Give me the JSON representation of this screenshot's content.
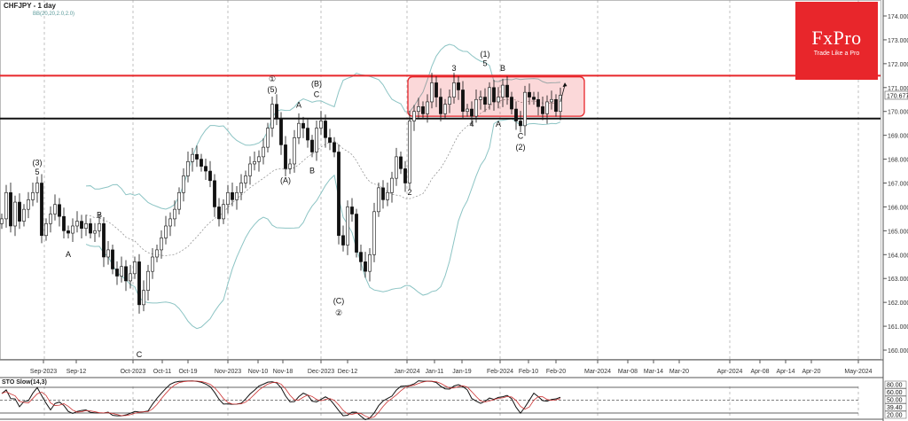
{
  "header": {
    "symbol_title": "CHFJPY - 1 day",
    "indicator_info": "BB(20,20,2.0,2.0)"
  },
  "logo": {
    "brand": "FxPro",
    "tagline": "Trade Like a Pro"
  },
  "chart_data": [
    {
      "type": "candlestick",
      "title": "CHFJPY - 1 day",
      "y_ticks": [
        "174.000",
        "173.000",
        "172.000",
        "171.000",
        "170.000",
        "169.000",
        "168.000",
        "167.000",
        "166.000",
        "165.000",
        "164.000",
        "163.000",
        "162.000",
        "161.000",
        "160.000"
      ],
      "ylim": [
        159.5,
        174.6
      ],
      "current_price": "170.677",
      "x_tick_labels": [
        "Sep-2023",
        "Sep-12",
        "Oct-2023",
        "Oct-11",
        "Oct-19",
        "Nov-2023",
        "Nov-10",
        "Nov-18",
        "Dec-2023",
        "Dec-12",
        "Jan-2024",
        "Jan-11",
        "Jan-19",
        "Feb-2024",
        "Feb-10",
        "Feb-20",
        "Mar-2024",
        "Mar-08",
        "Mar-14",
        "Mar-20",
        "Apr-2024",
        "Apr-08",
        "Apr-14",
        "Apr-20",
        "May-2024"
      ],
      "close": [
        165.5,
        166.6,
        165.2,
        166.2,
        165.4,
        165.9,
        166.3,
        166.6,
        167.0,
        164.8,
        165.3,
        165.7,
        166.1,
        165.6,
        165.0,
        164.9,
        165.2,
        165.4,
        165.1,
        165.3,
        164.9,
        165.0,
        165.3,
        163.9,
        164.2,
        163.4,
        163.1,
        163.5,
        162.9,
        163.2,
        163.7,
        161.9,
        162.5,
        163.3,
        163.9,
        164.2,
        164.7,
        165.2,
        165.5,
        165.9,
        166.6,
        167.3,
        167.9,
        168.2,
        168.0,
        167.7,
        167.5,
        167.1,
        166.0,
        165.5,
        166.1,
        166.6,
        166.3,
        166.6,
        167.0,
        167.3,
        167.8,
        167.9,
        168.1,
        168.5,
        169.3,
        170.3,
        169.7,
        168.6,
        167.6,
        167.8,
        168.9,
        169.5,
        169.3,
        168.8,
        168.3,
        169.3,
        169.6,
        168.9,
        168.7,
        168.3,
        164.8,
        164.4,
        166.0,
        165.7,
        164.1,
        163.7,
        163.3,
        164.0,
        165.8,
        166.8,
        166.3,
        166.6,
        167.2,
        168.1,
        167.6,
        167.0,
        169.6,
        170.0,
        170.2,
        169.9,
        170.4,
        171.2,
        170.6,
        169.9,
        170.3,
        170.6,
        171.2,
        170.9,
        170.0,
        170.1,
        169.8,
        170.5,
        170.6,
        170.3,
        171.0,
        170.4,
        170.6,
        171.1,
        170.6,
        170.1,
        169.6,
        169.4,
        170.8,
        170.6,
        170.5,
        170.2,
        169.9,
        170.4,
        170.5,
        170.0,
        170.677
      ],
      "indicators": [
        "Bollinger Bands (20, 2.0)"
      ],
      "horizontal_levels": [
        {
          "price": 171.5,
          "color": "#e8262b"
        },
        {
          "price": 169.7,
          "color": "#111111"
        }
      ],
      "range_box": {
        "from_index": 92,
        "to_index": 131,
        "top": 171.45,
        "bottom": 169.8,
        "color": "#e8262b"
      },
      "arrow": {
        "from_index": 126,
        "from_price": 170.4,
        "to_index": 127,
        "to_price": 171.1
      },
      "wave_labels": [
        {
          "text": "(3)",
          "index": 8,
          "price": 167.75
        },
        {
          "text": "5",
          "index": 8,
          "price": 167.35
        },
        {
          "text": "A",
          "index": 15,
          "price": 163.9
        },
        {
          "text": "B",
          "index": 22,
          "price": 165.55
        },
        {
          "text": "C",
          "index": 31,
          "price": 159.7
        },
        {
          "text": "①",
          "index": 61,
          "price": 171.25
        },
        {
          "text": "(5)",
          "index": 61,
          "price": 170.8
        },
        {
          "text": "(A)",
          "index": 64,
          "price": 167.0
        },
        {
          "text": "A",
          "index": 67,
          "price": 170.15
        },
        {
          "text": "B",
          "index": 70,
          "price": 167.4
        },
        {
          "text": "(B)",
          "index": 71,
          "price": 171.05
        },
        {
          "text": "C",
          "index": 71,
          "price": 170.6
        },
        {
          "text": "(C)",
          "index": 76,
          "price": 161.95
        },
        {
          "text": "②",
          "index": 76,
          "price": 161.45
        },
        {
          "text": "2",
          "index": 92,
          "price": 166.5
        },
        {
          "text": "3",
          "index": 102,
          "price": 171.7
        },
        {
          "text": "4",
          "index": 106,
          "price": 169.35
        },
        {
          "text": "(1)",
          "index": 109,
          "price": 172.3
        },
        {
          "text": "5",
          "index": 109,
          "price": 171.9
        },
        {
          "text": "A",
          "index": 112,
          "price": 169.35
        },
        {
          "text": "B",
          "index": 113,
          "price": 171.7
        },
        {
          "text": "C",
          "index": 117,
          "price": 168.85
        },
        {
          "text": "(2)",
          "index": 117,
          "price": 168.4
        }
      ]
    },
    {
      "type": "line",
      "title": "STO Slow(14,3)",
      "levels": [
        "80.00",
        "60.00",
        "50.00",
        "20.00"
      ],
      "current_value": "39.40",
      "ylim": [
        0,
        100
      ],
      "series_colors": [
        "#111111",
        "#cc3333"
      ]
    }
  ],
  "colors": {
    "bands": "#8cc4c4",
    "red_line": "#e8262b",
    "grid": "#9a9a9a"
  }
}
